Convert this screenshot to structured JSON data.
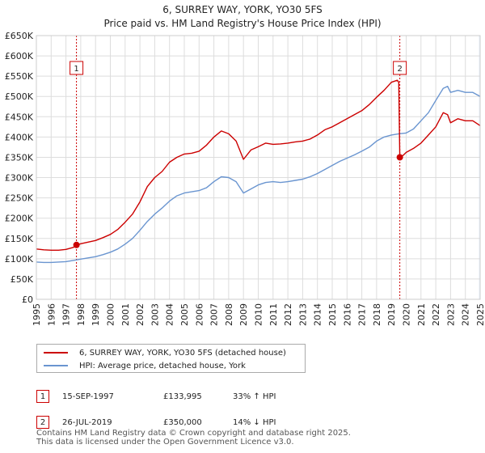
{
  "title_line1": "6, SURREY WAY, YORK, YO30 5FS",
  "title_line2": "Price paid vs. HM Land Registry's House Price Index (HPI)",
  "colors": {
    "property": "#cc0000",
    "hpi": "#6a95d0",
    "grid": "#dddddd",
    "shade": "#eef3fb"
  },
  "legend": {
    "property_label": "6, SURREY WAY, YORK, YO30 5FS (detached house)",
    "hpi_label": "HPI: Average price, detached house, York"
  },
  "transactions": [
    {
      "num": "1",
      "date": "15-SEP-1997",
      "price": "£133,995",
      "hpi_change": "33% ↑ HPI"
    },
    {
      "num": "2",
      "date": "26-JUL-2019",
      "price": "£350,000",
      "hpi_change": "14% ↓ HPI"
    }
  ],
  "footer_line1": "Contains HM Land Registry data © Crown copyright and database right 2025.",
  "footer_line2": "This data is licensed under the Open Government Licence v3.0.",
  "chart_data": {
    "type": "line",
    "xlabel": "",
    "ylabel": "",
    "xlim": [
      1995,
      2025
    ],
    "ylim": [
      0,
      650000
    ],
    "y_ticks": [
      0,
      50000,
      100000,
      150000,
      200000,
      250000,
      300000,
      350000,
      400000,
      450000,
      500000,
      550000,
      600000,
      650000
    ],
    "y_tick_labels": [
      "£0",
      "£50K",
      "£100K",
      "£150K",
      "£200K",
      "£250K",
      "£300K",
      "£350K",
      "£400K",
      "£450K",
      "£500K",
      "£550K",
      "£600K",
      "£650K"
    ],
    "x_ticks": [
      1995,
      1996,
      1997,
      1998,
      1999,
      2000,
      2001,
      2002,
      2003,
      2004,
      2005,
      2006,
      2007,
      2008,
      2009,
      2010,
      2011,
      2012,
      2013,
      2014,
      2015,
      2016,
      2017,
      2018,
      2019,
      2020,
      2021,
      2022,
      2023,
      2024,
      2025
    ],
    "x_tick_labels": [
      "1995",
      "1996",
      "1997",
      "1998",
      "1999",
      "2000",
      "2001",
      "2002",
      "2003",
      "2004",
      "2005",
      "2006",
      "2007",
      "2008",
      "2009",
      "2010",
      "2011",
      "2012",
      "2013",
      "2014",
      "2015",
      "2016",
      "2017",
      "2018",
      "2019",
      "2020",
      "2021",
      "2022",
      "2023",
      "2024",
      "2025"
    ],
    "grid": true,
    "future_shade_from": 2024.9,
    "sales": [
      {
        "label": "1",
        "x": 1997.71,
        "y": 133995
      },
      {
        "label": "2",
        "x": 2019.57,
        "y": 350000
      }
    ],
    "series": [
      {
        "name": "6, SURREY WAY, YORK, YO30 5FS (detached house)",
        "x": [
          1995.0,
          1995.5,
          1996.0,
          1996.5,
          1997.0,
          1997.5,
          1997.71,
          1998.0,
          1998.5,
          1999.0,
          1999.5,
          2000.0,
          2000.5,
          2001.0,
          2001.5,
          2002.0,
          2002.5,
          2003.0,
          2003.5,
          2004.0,
          2004.5,
          2005.0,
          2005.5,
          2006.0,
          2006.5,
          2007.0,
          2007.5,
          2008.0,
          2008.5,
          2009.0,
          2009.5,
          2010.0,
          2010.5,
          2011.0,
          2011.5,
          2012.0,
          2012.5,
          2013.0,
          2013.5,
          2014.0,
          2014.5,
          2015.0,
          2015.5,
          2016.0,
          2016.5,
          2017.0,
          2017.5,
          2018.0,
          2018.5,
          2019.0,
          2019.4,
          2019.5,
          2019.57,
          2019.8,
          2020.0,
          2020.5,
          2021.0,
          2021.5,
          2022.0,
          2022.5,
          2022.8,
          2023.0,
          2023.5,
          2024.0,
          2024.5,
          2025.0
        ],
        "y": [
          124000,
          122000,
          121000,
          121000,
          123000,
          128000,
          133995,
          137000,
          141000,
          145000,
          152000,
          160000,
          172000,
          190000,
          210000,
          240000,
          278000,
          300000,
          315000,
          338000,
          350000,
          358000,
          360000,
          365000,
          380000,
          400000,
          415000,
          408000,
          390000,
          345000,
          368000,
          376000,
          385000,
          382000,
          383000,
          385000,
          388000,
          390000,
          395000,
          405000,
          418000,
          425000,
          435000,
          445000,
          455000,
          465000,
          480000,
          498000,
          515000,
          535000,
          540000,
          535000,
          350000,
          355000,
          362000,
          372000,
          385000,
          405000,
          425000,
          460000,
          455000,
          435000,
          445000,
          440000,
          440000,
          428000
        ]
      },
      {
        "name": "HPI: Average price, detached house, York",
        "x": [
          1995.0,
          1995.5,
          1996.0,
          1996.5,
          1997.0,
          1997.5,
          1998.0,
          1998.5,
          1999.0,
          1999.5,
          2000.0,
          2000.5,
          2001.0,
          2001.5,
          2002.0,
          2002.5,
          2003.0,
          2003.5,
          2004.0,
          2004.5,
          2005.0,
          2005.5,
          2006.0,
          2006.5,
          2007.0,
          2007.5,
          2008.0,
          2008.5,
          2009.0,
          2009.5,
          2010.0,
          2010.5,
          2011.0,
          2011.5,
          2012.0,
          2012.5,
          2013.0,
          2013.5,
          2014.0,
          2014.5,
          2015.0,
          2015.5,
          2016.0,
          2016.5,
          2017.0,
          2017.5,
          2018.0,
          2018.5,
          2019.0,
          2019.5,
          2020.0,
          2020.5,
          2021.0,
          2021.5,
          2022.0,
          2022.5,
          2022.8,
          2023.0,
          2023.5,
          2024.0,
          2024.5,
          2025.0
        ],
        "y": [
          92000,
          91000,
          91000,
          92000,
          93000,
          96000,
          99000,
          102000,
          105000,
          110000,
          116000,
          124000,
          136000,
          150000,
          170000,
          192000,
          210000,
          225000,
          242000,
          255000,
          262000,
          265000,
          268000,
          275000,
          290000,
          302000,
          300000,
          290000,
          262000,
          272000,
          282000,
          288000,
          290000,
          288000,
          290000,
          293000,
          296000,
          302000,
          310000,
          320000,
          330000,
          340000,
          348000,
          356000,
          365000,
          375000,
          390000,
          400000,
          405000,
          408000,
          410000,
          420000,
          440000,
          460000,
          490000,
          520000,
          525000,
          510000,
          515000,
          510000,
          510000,
          500000
        ]
      }
    ]
  }
}
